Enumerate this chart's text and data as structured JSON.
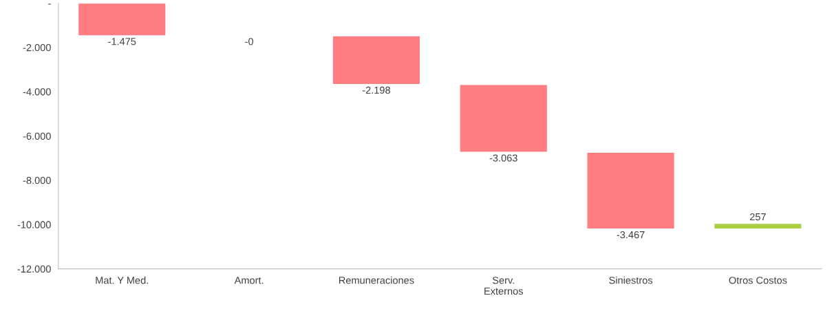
{
  "chart_data": {
    "type": "bar",
    "categories": [
      "Mat. Y Med.",
      "Amort.",
      "Remuneraciones",
      "Serv.\nExternos",
      "Siniestros",
      "Otros Costos"
    ],
    "values": [
      -1475,
      -0.4,
      -2198,
      -3063,
      -3467,
      257
    ],
    "base": [
      0,
      -1475,
      -1475,
      -3673,
      -6736,
      -10203
    ],
    "colors": [
      "#ff7c80",
      "#ff7c80",
      "#ff7c80",
      "#ff7c80",
      "#ff7c80",
      "#a9d142"
    ],
    "value_labels": [
      "-1.475",
      "-0",
      "-2.198",
      "-3.063",
      "-3.467",
      "257"
    ],
    "ylim": [
      -12000,
      0
    ],
    "yticks": [
      {
        "value": 0,
        "label": "-"
      },
      {
        "value": -2000,
        "label": "-2.000"
      },
      {
        "value": -4000,
        "label": "-4.000"
      },
      {
        "value": -6000,
        "label": "-6.000"
      },
      {
        "value": -8000,
        "label": "-8.000"
      },
      {
        "value": -10000,
        "label": "-10.000"
      },
      {
        "value": -12000,
        "label": "-12.000"
      }
    ],
    "grid": false,
    "legend": false
  }
}
